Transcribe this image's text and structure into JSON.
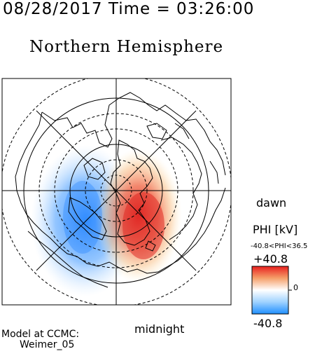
{
  "header": {
    "timestamp": "08/28/2017 Time = 03:26:00",
    "hemisphere": "Northern Hemisphere"
  },
  "map": {
    "labels": {
      "dawn": "dawn",
      "midnight": "midnight"
    },
    "potential_cells": [
      {
        "sign": "negative",
        "color": "#2f8cff",
        "location": "dusk side (left)"
      },
      {
        "sign": "positive",
        "color": "#e02020",
        "location": "dawn side (right)"
      }
    ]
  },
  "colorbar": {
    "title": "PHI [kV]",
    "range_text": "-40.8<PHI<36.5",
    "max_label": "+40.8",
    "zero_label": "0",
    "min_label": "-40.8",
    "colors": [
      "#e8201e",
      "#f5a06a",
      "#ffffff",
      "#9fd2ff",
      "#1f8fff"
    ]
  },
  "footer": {
    "model_line1": "Model at CCMC:",
    "model_line2": "Weimer_05"
  }
}
